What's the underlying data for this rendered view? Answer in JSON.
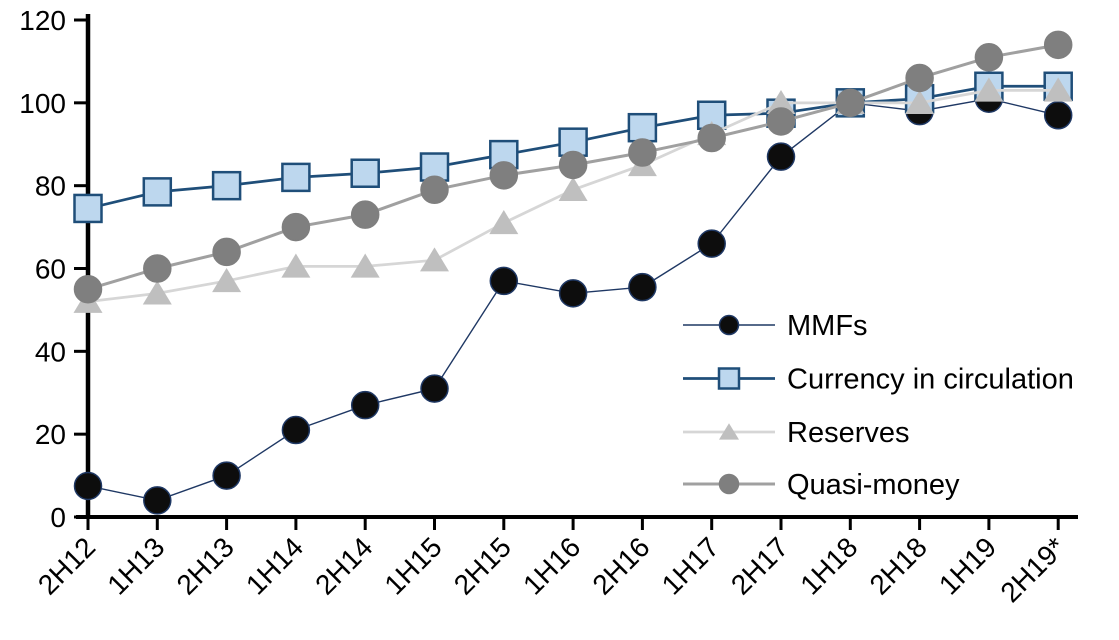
{
  "chart": {
    "background": "#FFFFFF",
    "axis_color": "#000000",
    "font_color": "#000000"
  },
  "chart_data": {
    "type": "line",
    "title": "",
    "xlabel": "",
    "ylabel": "",
    "ylim": [
      0,
      120
    ],
    "ytick_step": 20,
    "yticks": [
      0,
      20,
      40,
      60,
      80,
      100,
      120
    ],
    "grid": false,
    "legend_position": "inside-right-middle",
    "categories": [
      "2H12",
      "1H13",
      "2H13",
      "1H14",
      "2H14",
      "1H15",
      "2H15",
      "1H16",
      "2H16",
      "1H17",
      "2H17",
      "1H18",
      "2H18",
      "1H19",
      "2H19*"
    ],
    "series": [
      {
        "name": "MMFs",
        "values": [
          7.5,
          4,
          10,
          21,
          27,
          31,
          57,
          54,
          55.5,
          66,
          87,
          100,
          98,
          101,
          97
        ],
        "marker": "circle",
        "marker_fill": "#0D0D0D",
        "marker_stroke": "#1F3864",
        "line_color": "#1F3864",
        "line_width": 1.4,
        "marker_size": 27
      },
      {
        "name": "Currency in circulation",
        "values": [
          74.5,
          78.5,
          80,
          82,
          83,
          84.5,
          87.5,
          90.5,
          94,
          97,
          97.5,
          100,
          101,
          104,
          104
        ],
        "marker": "square",
        "marker_fill": "#BDD7EE",
        "marker_stroke": "#1F4E79",
        "line_color": "#1F4E79",
        "line_width": 2.75,
        "marker_size": 27
      },
      {
        "name": "Reserves",
        "values": [
          52,
          54,
          57,
          60.5,
          60.5,
          62,
          71,
          79,
          85,
          92.5,
          100,
          100,
          100,
          103,
          103
        ],
        "marker": "triangle",
        "marker_fill": "#BFBFBF",
        "marker_stroke": "#BFBFBF",
        "line_color": "#D6D6D6",
        "line_width": 2.75,
        "marker_size": 28
      },
      {
        "name": "Quasi-money",
        "values": [
          55,
          60,
          64,
          70,
          73,
          79,
          82.5,
          85,
          88,
          91.5,
          95.5,
          100,
          106,
          111,
          114
        ],
        "marker": "circle",
        "marker_fill": "#7F7F7F",
        "marker_stroke": "#7F7F7F",
        "line_color": "#A0A0A0",
        "line_width": 3,
        "marker_size": 27
      }
    ]
  }
}
